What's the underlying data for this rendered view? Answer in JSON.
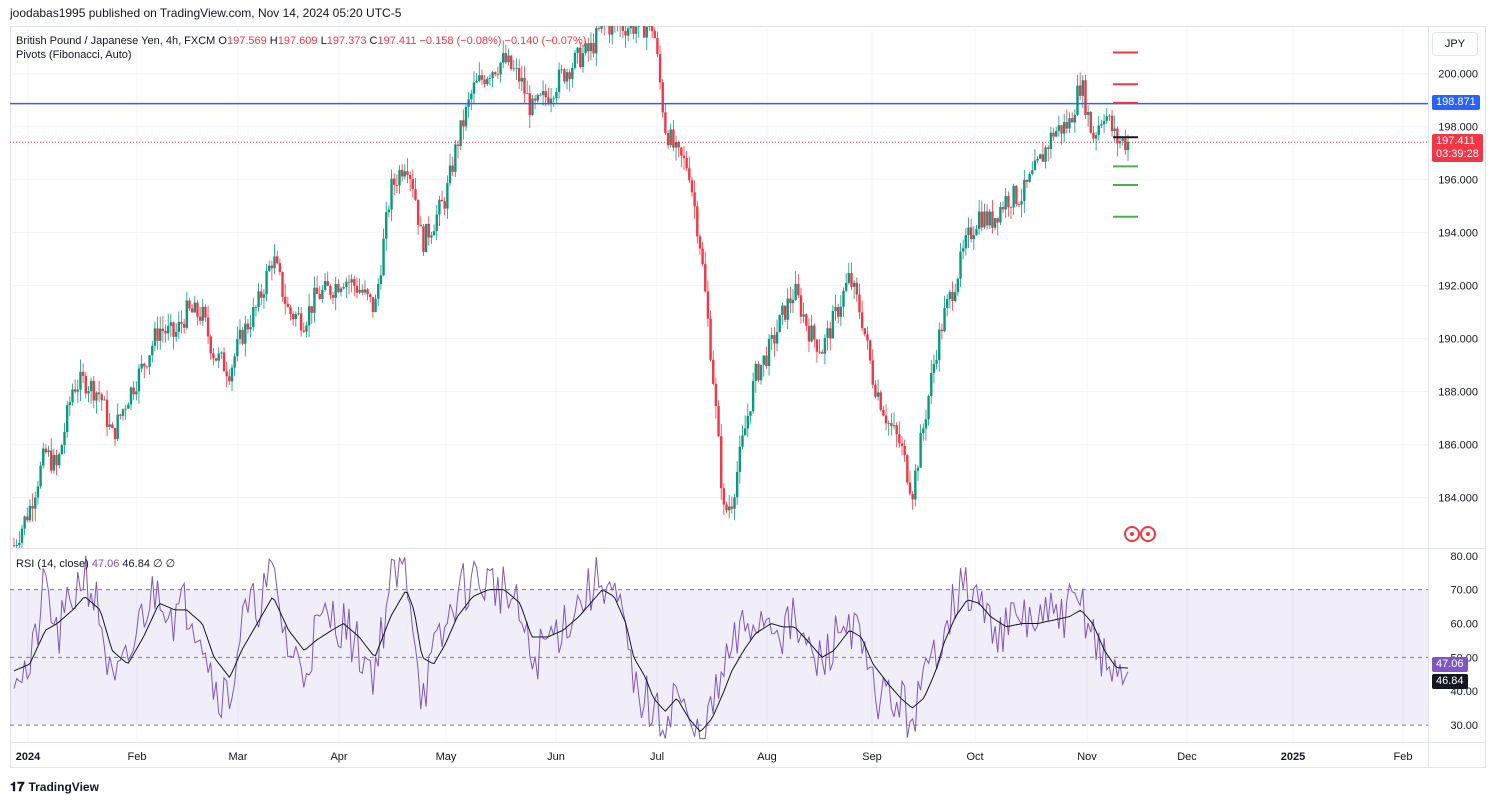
{
  "header": {
    "publisher": "joodabas1995 published on TradingView.com, Nov 14, 2024 05:20 UTC-5"
  },
  "legend": {
    "symbol": "British Pound / Japanese Yen, 4h, FXCM",
    "o_label": "O",
    "o": "197.569",
    "h_label": "H",
    "h": "197.609",
    "l_label": "L",
    "l": "197.373",
    "c_label": "C",
    "c": "197.411",
    "change": "−0.158 (−0.08%)",
    "change2": "−0.140 (−0.07%)",
    "indicator": "Pivots (Fibonacci, Auto)"
  },
  "rsi_legend": {
    "name": "RSI (14, close)",
    "rsi": "47.06",
    "ma": "46.84",
    "extra1": "∅",
    "extra2": "∅"
  },
  "currency": "JPY",
  "footer": {
    "brand": "TradingView",
    "logo_icon": "tradingview-logo-icon"
  },
  "colors": {
    "up": "#089981",
    "down": "#f23645",
    "line": "#2962ff",
    "rsi": "#7e57c2",
    "rsi_ma": "#131722",
    "pivot_r": "#f23645",
    "pivot_s": "#4caf50"
  },
  "chart_data": {
    "type": "candlestick",
    "price_axis": {
      "ticks": [
        "200.000",
        "198.000",
        "196.000",
        "194.000",
        "192.000",
        "190.000",
        "188.000",
        "186.000",
        "184.000"
      ],
      "range": [
        182.1,
        201.8
      ]
    },
    "time_axis": {
      "labels": [
        "2024",
        "Feb",
        "Mar",
        "Apr",
        "May",
        "Jun",
        "Jul",
        "Aug",
        "Sep",
        "Oct",
        "Nov",
        "Dec",
        "2025",
        "Feb"
      ]
    },
    "horizontal_line": {
      "value": 198.871,
      "label": "198.871"
    },
    "last_price": {
      "value": 197.411,
      "label": "197.411",
      "countdown": "03:39:28"
    },
    "pivots": {
      "P": 197.6,
      "R": [
        198.9,
        199.6,
        200.8
      ],
      "S": [
        196.5,
        195.8,
        194.6
      ]
    },
    "price_path": [
      [
        0,
        182.2
      ],
      [
        4,
        183.6
      ],
      [
        8,
        185.7
      ],
      [
        11,
        185.1
      ],
      [
        15,
        188.2
      ],
      [
        18,
        188.4
      ],
      [
        22,
        187.9
      ],
      [
        25,
        186.3
      ],
      [
        29,
        187.8
      ],
      [
        33,
        189.0
      ],
      [
        37,
        190.4
      ],
      [
        41,
        190.1
      ],
      [
        44,
        191.0
      ],
      [
        48,
        190.9
      ],
      [
        51,
        189.4
      ],
      [
        55,
        188.8
      ],
      [
        58,
        190.1
      ],
      [
        62,
        191.2
      ],
      [
        66,
        193.1
      ],
      [
        70,
        191.0
      ],
      [
        74,
        190.7
      ],
      [
        77,
        191.6
      ],
      [
        81,
        191.9
      ],
      [
        84,
        192.3
      ],
      [
        88,
        191.9
      ],
      [
        92,
        191.1
      ],
      [
        96,
        195.6
      ],
      [
        100,
        196.8
      ],
      [
        102,
        195.7
      ],
      [
        104,
        193.6
      ],
      [
        107,
        194.4
      ],
      [
        110,
        195.3
      ],
      [
        113,
        197.4
      ],
      [
        117,
        199.4
      ],
      [
        121,
        200.1
      ],
      [
        125,
        200.5
      ],
      [
        129,
        199.8
      ],
      [
        132,
        198.6
      ],
      [
        136,
        199.2
      ],
      [
        140,
        200.0
      ],
      [
        144,
        200.6
      ],
      [
        147,
        200.9
      ],
      [
        150,
        201.8
      ],
      [
        163,
        201.8
      ],
      [
        166,
        198.0
      ],
      [
        169,
        196.9
      ],
      [
        172,
        196.5
      ],
      [
        175,
        193.5
      ],
      [
        178,
        189.0
      ],
      [
        181,
        183.4
      ],
      [
        183,
        183.9
      ],
      [
        186,
        186.3
      ],
      [
        189,
        188.6
      ],
      [
        193,
        189.7
      ],
      [
        196,
        190.9
      ],
      [
        199,
        191.8
      ],
      [
        203,
        190.2
      ],
      [
        206,
        189.6
      ],
      [
        209,
        190.7
      ],
      [
        213,
        192.3
      ],
      [
        216,
        190.9
      ],
      [
        219,
        188.5
      ],
      [
        223,
        186.8
      ],
      [
        226,
        186.0
      ],
      [
        229,
        184.2
      ],
      [
        232,
        186.8
      ],
      [
        235,
        189.5
      ],
      [
        237,
        190.8
      ],
      [
        240,
        192.2
      ],
      [
        243,
        193.7
      ],
      [
        246,
        194.7
      ],
      [
        249,
        194.4
      ],
      [
        253,
        195.3
      ],
      [
        257,
        195.4
      ],
      [
        261,
        196.5
      ],
      [
        265,
        197.8
      ],
      [
        269,
        198.1
      ],
      [
        272,
        199.7
      ],
      [
        275,
        197.6
      ],
      [
        278,
        198.6
      ],
      [
        281,
        197.5
      ],
      [
        284,
        197.41
      ]
    ],
    "rsi": {
      "ticks": [
        "80.00",
        "70.00",
        "60.00",
        "50.00",
        "40.00",
        "30.00"
      ],
      "range": [
        25,
        82
      ],
      "overbought": 70,
      "mid": 50,
      "oversold": 30,
      "rsi_value_label": "47.06",
      "ma_value_label": "46.84",
      "path": [
        [
          0,
          48
        ],
        [
          4,
          45
        ],
        [
          8,
          72
        ],
        [
          11,
          55
        ],
        [
          15,
          68
        ],
        [
          18,
          76
        ],
        [
          22,
          62
        ],
        [
          25,
          40
        ],
        [
          29,
          48
        ],
        [
          33,
          64
        ],
        [
          37,
          71
        ],
        [
          41,
          62
        ],
        [
          44,
          66
        ],
        [
          48,
          58
        ],
        [
          51,
          42
        ],
        [
          55,
          38
        ],
        [
          58,
          60
        ],
        [
          62,
          66
        ],
        [
          66,
          74
        ],
        [
          70,
          52
        ],
        [
          74,
          46
        ],
        [
          77,
          58
        ],
        [
          81,
          62
        ],
        [
          84,
          60
        ],
        [
          88,
          52
        ],
        [
          92,
          46
        ],
        [
          96,
          72
        ],
        [
          100,
          76
        ],
        [
          102,
          60
        ],
        [
          104,
          38
        ],
        [
          107,
          50
        ],
        [
          110,
          58
        ],
        [
          113,
          69
        ],
        [
          117,
          73
        ],
        [
          121,
          72
        ],
        [
          125,
          70
        ],
        [
          129,
          62
        ],
        [
          132,
          48
        ],
        [
          136,
          55
        ],
        [
          140,
          60
        ],
        [
          144,
          66
        ],
        [
          147,
          70
        ],
        [
          150,
          74
        ],
        [
          153,
          68
        ],
        [
          156,
          56
        ],
        [
          158,
          40
        ],
        [
          161,
          38
        ],
        [
          163,
          33
        ],
        [
          166,
          30
        ],
        [
          169,
          42
        ],
        [
          172,
          28
        ],
        [
          175,
          26
        ],
        [
          178,
          34
        ],
        [
          181,
          46
        ],
        [
          183,
          52
        ],
        [
          186,
          58
        ],
        [
          189,
          61
        ],
        [
          193,
          62
        ],
        [
          196,
          58
        ],
        [
          199,
          60
        ],
        [
          203,
          50
        ],
        [
          206,
          48
        ],
        [
          209,
          55
        ],
        [
          213,
          62
        ],
        [
          216,
          52
        ],
        [
          219,
          40
        ],
        [
          223,
          38
        ],
        [
          226,
          36
        ],
        [
          229,
          32
        ],
        [
          232,
          42
        ],
        [
          235,
          52
        ],
        [
          237,
          60
        ],
        [
          240,
          68
        ],
        [
          243,
          70
        ],
        [
          246,
          66
        ],
        [
          249,
          60
        ],
        [
          253,
          58
        ],
        [
          257,
          62
        ],
        [
          261,
          60
        ],
        [
          265,
          62
        ],
        [
          269,
          64
        ],
        [
          272,
          66
        ],
        [
          275,
          58
        ],
        [
          278,
          48
        ],
        [
          281,
          44
        ],
        [
          284,
          47
        ]
      ],
      "ma_path": [
        [
          0,
          46
        ],
        [
          4,
          48
        ],
        [
          8,
          58
        ],
        [
          11,
          60
        ],
        [
          15,
          64
        ],
        [
          18,
          68
        ],
        [
          22,
          64
        ],
        [
          25,
          52
        ],
        [
          29,
          48
        ],
        [
          33,
          56
        ],
        [
          37,
          66
        ],
        [
          41,
          64
        ],
        [
          44,
          64
        ],
        [
          48,
          60
        ],
        [
          51,
          50
        ],
        [
          55,
          44
        ],
        [
          58,
          52
        ],
        [
          62,
          60
        ],
        [
          66,
          68
        ],
        [
          70,
          58
        ],
        [
          74,
          52
        ],
        [
          77,
          55
        ],
        [
          81,
          58
        ],
        [
          84,
          60
        ],
        [
          88,
          56
        ],
        [
          92,
          50
        ],
        [
          96,
          62
        ],
        [
          100,
          70
        ],
        [
          102,
          64
        ],
        [
          104,
          50
        ],
        [
          107,
          48
        ],
        [
          110,
          54
        ],
        [
          113,
          62
        ],
        [
          117,
          68
        ],
        [
          121,
          70
        ],
        [
          125,
          70
        ],
        [
          129,
          66
        ],
        [
          132,
          56
        ],
        [
          136,
          56
        ],
        [
          140,
          58
        ],
        [
          144,
          62
        ],
        [
          147,
          66
        ],
        [
          150,
          70
        ],
        [
          153,
          68
        ],
        [
          156,
          60
        ],
        [
          158,
          50
        ],
        [
          161,
          44
        ],
        [
          163,
          38
        ],
        [
          166,
          34
        ],
        [
          169,
          38
        ],
        [
          172,
          32
        ],
        [
          175,
          28
        ],
        [
          178,
          32
        ],
        [
          181,
          40
        ],
        [
          183,
          46
        ],
        [
          186,
          52
        ],
        [
          189,
          57
        ],
        [
          193,
          60
        ],
        [
          196,
          59
        ],
        [
          199,
          59
        ],
        [
          203,
          54
        ],
        [
          206,
          50
        ],
        [
          209,
          52
        ],
        [
          213,
          58
        ],
        [
          216,
          56
        ],
        [
          219,
          48
        ],
        [
          223,
          42
        ],
        [
          226,
          38
        ],
        [
          229,
          35
        ],
        [
          232,
          38
        ],
        [
          235,
          46
        ],
        [
          237,
          54
        ],
        [
          240,
          62
        ],
        [
          243,
          67
        ],
        [
          246,
          66
        ],
        [
          249,
          62
        ],
        [
          253,
          59
        ],
        [
          257,
          60
        ],
        [
          261,
          60
        ],
        [
          265,
          61
        ],
        [
          269,
          62
        ],
        [
          272,
          64
        ],
        [
          275,
          60
        ],
        [
          278,
          52
        ],
        [
          281,
          47
        ],
        [
          284,
          46.84
        ]
      ]
    }
  }
}
